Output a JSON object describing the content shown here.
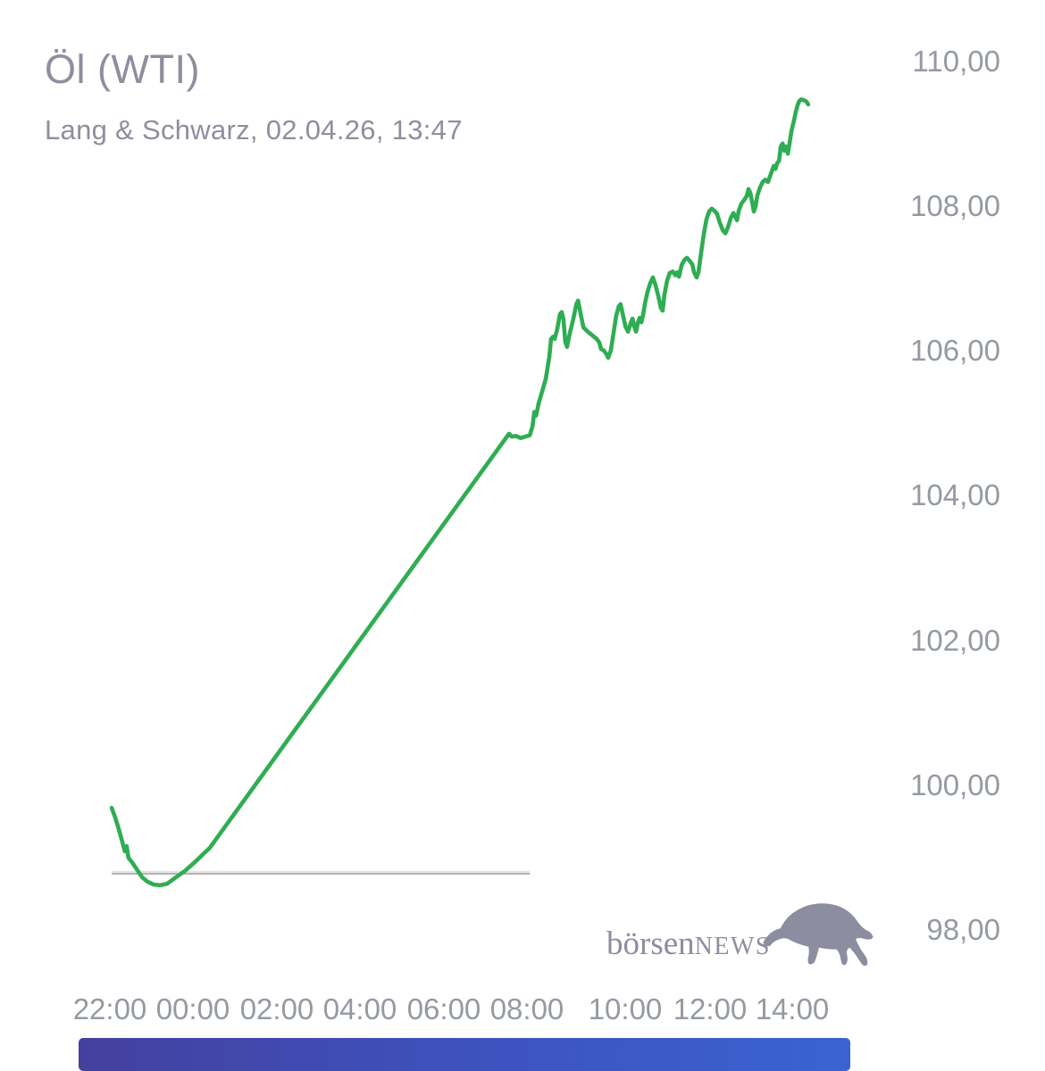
{
  "header": {
    "title": "Öl (WTI)",
    "subtitle": "Lang & Schwarz, 02.04.26, 13:47"
  },
  "logo": {
    "text_primary": "börsen",
    "text_secondary": "NEWS",
    "color": "#8d8da0"
  },
  "colors": {
    "background": "#ffffff",
    "line_green": "#2fad53",
    "previous_close_line": "#c9c9c9",
    "axis_label": "#949aa1",
    "title_text": "#8e8e9f",
    "range_bar_left": "#44409e",
    "range_bar_right": "#3a63d2"
  },
  "chart_data": {
    "type": "line",
    "title": "Öl (WTI)",
    "subtitle": "Lang & Schwarz, 02.04.26, 13:47",
    "source": "Lang & Schwarz",
    "quote_date": "02.04.26",
    "quote_time": "13:47",
    "last_price": 109.42,
    "grid": false,
    "legend": "none",
    "x_axis": {
      "unit": "hours_since_22:00",
      "tick_labels": [
        "22:00",
        "00:00",
        "02:00",
        "04:00",
        "06:00",
        "08:00",
        "10:00",
        "12:00",
        "14:00"
      ],
      "tick_hours": [
        0,
        2,
        4,
        6,
        8,
        10,
        12,
        14,
        16
      ],
      "range_hours": [
        0,
        16
      ]
    },
    "y_axis": {
      "tick_labels": [
        "110,00",
        "108,00",
        "106,00",
        "104,00",
        "102,00",
        "100,00",
        "98,00"
      ],
      "tick_values": [
        110,
        108,
        106,
        104,
        102,
        100,
        98
      ],
      "range": [
        98,
        110
      ]
    },
    "previous_close": {
      "value": 98.8,
      "start_hour": 0.04,
      "end_hour": 9.49
    },
    "series": [
      {
        "name": "Öl (WTI)",
        "color": "#2fad53",
        "points": [
          [
            0.04,
            99.7
          ],
          [
            0.12,
            99.57
          ],
          [
            0.2,
            99.41
          ],
          [
            0.28,
            99.23
          ],
          [
            0.34,
            99.1
          ],
          [
            0.38,
            99.17
          ],
          [
            0.42,
            99.01
          ],
          [
            0.51,
            98.94
          ],
          [
            0.61,
            98.85
          ],
          [
            0.73,
            98.74
          ],
          [
            0.85,
            98.68
          ],
          [
            0.99,
            98.64
          ],
          [
            1.13,
            98.63
          ],
          [
            1.29,
            98.65
          ],
          [
            1.47,
            98.73
          ],
          [
            1.7,
            98.83
          ],
          [
            1.92,
            98.95
          ],
          [
            2.26,
            99.15
          ],
          [
            8.96,
            104.82
          ],
          [
            9.02,
            104.87
          ],
          [
            9.08,
            104.83
          ],
          [
            9.18,
            104.84
          ],
          [
            9.28,
            104.81
          ],
          [
            9.39,
            104.83
          ],
          [
            9.49,
            104.85
          ],
          [
            9.55,
            104.97
          ],
          [
            9.59,
            105.17
          ],
          [
            9.63,
            105.12
          ],
          [
            9.69,
            105.29
          ],
          [
            9.77,
            105.46
          ],
          [
            9.85,
            105.63
          ],
          [
            9.93,
            105.93
          ],
          [
            9.97,
            106.18
          ],
          [
            10.01,
            106.21
          ],
          [
            10.05,
            106.18
          ],
          [
            10.11,
            106.32
          ],
          [
            10.17,
            106.52
          ],
          [
            10.21,
            106.55
          ],
          [
            10.25,
            106.45
          ],
          [
            10.29,
            106.14
          ],
          [
            10.33,
            106.07
          ],
          [
            10.39,
            106.25
          ],
          [
            10.47,
            106.45
          ],
          [
            10.54,
            106.66
          ],
          [
            10.58,
            106.71
          ],
          [
            10.64,
            106.52
          ],
          [
            10.7,
            106.34
          ],
          [
            10.8,
            106.28
          ],
          [
            10.9,
            106.23
          ],
          [
            11.0,
            106.18
          ],
          [
            11.06,
            106.13
          ],
          [
            11.1,
            106.04
          ],
          [
            11.16,
            106.02
          ],
          [
            11.22,
            105.97
          ],
          [
            11.26,
            105.92
          ],
          [
            11.32,
            106.02
          ],
          [
            11.38,
            106.26
          ],
          [
            11.44,
            106.5
          ],
          [
            11.5,
            106.63
          ],
          [
            11.54,
            106.66
          ],
          [
            11.59,
            106.52
          ],
          [
            11.65,
            106.35
          ],
          [
            11.71,
            106.28
          ],
          [
            11.77,
            106.4
          ],
          [
            11.81,
            106.46
          ],
          [
            11.85,
            106.35
          ],
          [
            11.89,
            106.28
          ],
          [
            11.93,
            106.4
          ],
          [
            11.97,
            106.47
          ],
          [
            12.01,
            106.41
          ],
          [
            12.05,
            106.52
          ],
          [
            12.09,
            106.67
          ],
          [
            12.15,
            106.83
          ],
          [
            12.21,
            106.95
          ],
          [
            12.27,
            107.03
          ],
          [
            12.33,
            106.92
          ],
          [
            12.39,
            106.78
          ],
          [
            12.45,
            106.61
          ],
          [
            12.49,
            106.57
          ],
          [
            12.53,
            106.79
          ],
          [
            12.59,
            106.98
          ],
          [
            12.65,
            107.09
          ],
          [
            12.72,
            107.11
          ],
          [
            12.78,
            107.06
          ],
          [
            12.82,
            107.1
          ],
          [
            12.86,
            107.04
          ],
          [
            12.92,
            107.2
          ],
          [
            12.98,
            107.27
          ],
          [
            13.04,
            107.3
          ],
          [
            13.1,
            107.26
          ],
          [
            13.16,
            107.21
          ],
          [
            13.2,
            107.1
          ],
          [
            13.26,
            107.03
          ],
          [
            13.3,
            107.1
          ],
          [
            13.36,
            107.37
          ],
          [
            13.42,
            107.63
          ],
          [
            13.48,
            107.83
          ],
          [
            13.54,
            107.94
          ],
          [
            13.6,
            107.98
          ],
          [
            13.66,
            107.95
          ],
          [
            13.72,
            107.91
          ],
          [
            13.78,
            107.79
          ],
          [
            13.85,
            107.68
          ],
          [
            13.91,
            107.64
          ],
          [
            13.97,
            107.73
          ],
          [
            14.03,
            107.85
          ],
          [
            14.09,
            107.92
          ],
          [
            14.13,
            107.87
          ],
          [
            14.17,
            107.82
          ],
          [
            14.21,
            107.95
          ],
          [
            14.27,
            108.05
          ],
          [
            14.33,
            108.1
          ],
          [
            14.39,
            108.15
          ],
          [
            14.43,
            108.25
          ],
          [
            14.47,
            108.2
          ],
          [
            14.51,
            108.08
          ],
          [
            14.55,
            107.94
          ],
          [
            14.59,
            108.01
          ],
          [
            14.63,
            108.16
          ],
          [
            14.69,
            108.27
          ],
          [
            14.75,
            108.35
          ],
          [
            14.81,
            108.38
          ],
          [
            14.87,
            108.35
          ],
          [
            14.93,
            108.45
          ],
          [
            15.0,
            108.57
          ],
          [
            15.04,
            108.53
          ],
          [
            15.08,
            108.61
          ],
          [
            15.12,
            108.64
          ],
          [
            15.16,
            108.84
          ],
          [
            15.2,
            108.88
          ],
          [
            15.24,
            108.78
          ],
          [
            15.28,
            108.84
          ],
          [
            15.32,
            108.74
          ],
          [
            15.36,
            108.89
          ],
          [
            15.4,
            109.05
          ],
          [
            15.46,
            109.2
          ],
          [
            15.5,
            109.32
          ],
          [
            15.54,
            109.41
          ],
          [
            15.58,
            109.47
          ],
          [
            15.62,
            109.49
          ],
          [
            15.68,
            109.48
          ],
          [
            15.74,
            109.46
          ],
          [
            15.78,
            109.42
          ]
        ]
      }
    ]
  }
}
